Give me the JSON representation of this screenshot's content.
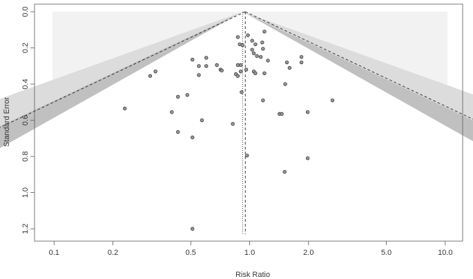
{
  "chart_data": {
    "type": "scatter",
    "title": "",
    "xlabel": "Risk Ratio",
    "ylabel": "Standard Error",
    "x_scale": "log",
    "xlim": [
      0.0876,
      11.5
    ],
    "ylim": [
      0,
      1.23
    ],
    "y_inverted": true,
    "x_ticks": [
      0.1,
      0.2,
      0.5,
      1.0,
      2.0,
      5.0,
      10.0
    ],
    "x_tick_labels": [
      "0.1",
      "0.2",
      "0.5",
      "1.0",
      "2.0",
      "5.0",
      "10.0"
    ],
    "y_ticks": [
      0,
      0.2,
      0.4,
      0.6,
      0.8,
      1.0,
      1.2
    ],
    "y_tick_labels": [
      "0.0",
      "0.2",
      "0.4",
      "0.6",
      "0.8",
      "1.0",
      "1.2"
    ],
    "pooled_estimate": 0.95,
    "null_value": 0.921,
    "contours": [
      {
        "significance": 0.1,
        "z": 1.645,
        "color": "#ffffff"
      },
      {
        "significance": 0.05,
        "z": 1.96,
        "color": "#c0c0c0"
      },
      {
        "significance": 0.01,
        "z": 2.576,
        "color": "#dcdcdc"
      },
      {
        "significance": "outside",
        "color": "#f2f2f2"
      }
    ],
    "points": [
      {
        "rr": 1.19,
        "se": 0.11
      },
      {
        "rr": 0.87,
        "se": 0.14
      },
      {
        "rr": 0.98,
        "se": 0.13
      },
      {
        "rr": 0.89,
        "se": 0.18
      },
      {
        "rr": 0.92,
        "se": 0.185
      },
      {
        "rr": 1.03,
        "se": 0.16
      },
      {
        "rr": 1.07,
        "se": 0.18
      },
      {
        "rr": 1.16,
        "se": 0.17
      },
      {
        "rr": 1.03,
        "se": 0.21
      },
      {
        "rr": 1.05,
        "se": 0.23
      },
      {
        "rr": 1.17,
        "se": 0.205
      },
      {
        "rr": 1.09,
        "se": 0.245
      },
      {
        "rr": 1.14,
        "se": 0.25
      },
      {
        "rr": 1.24,
        "se": 0.27
      },
      {
        "rr": 1.84,
        "se": 0.25
      },
      {
        "rr": 1.84,
        "se": 0.28
      },
      {
        "rr": 1.55,
        "se": 0.28
      },
      {
        "rr": 1.6,
        "se": 0.31
      },
      {
        "rr": 0.51,
        "se": 0.265
      },
      {
        "rr": 0.6,
        "se": 0.255
      },
      {
        "rr": 0.55,
        "se": 0.3
      },
      {
        "rr": 0.6,
        "se": 0.3
      },
      {
        "rr": 0.68,
        "se": 0.295
      },
      {
        "rr": 0.71,
        "se": 0.32
      },
      {
        "rr": 0.72,
        "se": 0.325
      },
      {
        "rr": 0.87,
        "se": 0.295
      },
      {
        "rr": 0.9,
        "se": 0.295
      },
      {
        "rr": 0.9,
        "se": 0.33
      },
      {
        "rr": 0.85,
        "se": 0.345
      },
      {
        "rr": 0.87,
        "se": 0.355
      },
      {
        "rr": 0.96,
        "se": 0.32
      },
      {
        "rr": 1.05,
        "se": 0.33
      },
      {
        "rr": 1.07,
        "se": 0.34
      },
      {
        "rr": 1.19,
        "se": 0.34
      },
      {
        "rr": 0.33,
        "se": 0.33
      },
      {
        "rr": 0.31,
        "se": 0.355
      },
      {
        "rr": 0.55,
        "se": 0.35
      },
      {
        "rr": 1.52,
        "se": 0.4
      },
      {
        "rr": 0.91,
        "se": 0.445
      },
      {
        "rr": 0.43,
        "se": 0.47
      },
      {
        "rr": 0.48,
        "se": 0.46
      },
      {
        "rr": 1.17,
        "se": 0.49
      },
      {
        "rr": 2.65,
        "se": 0.49
      },
      {
        "rr": 0.23,
        "se": 0.535
      },
      {
        "rr": 0.4,
        "se": 0.555
      },
      {
        "rr": 1.98,
        "se": 0.555
      },
      {
        "rr": 1.42,
        "se": 0.565
      },
      {
        "rr": 1.46,
        "se": 0.565
      },
      {
        "rr": 0.57,
        "se": 0.6
      },
      {
        "rr": 0.82,
        "se": 0.62
      },
      {
        "rr": 0.43,
        "se": 0.665
      },
      {
        "rr": 0.51,
        "se": 0.695
      },
      {
        "rr": 0.97,
        "se": 0.795
      },
      {
        "rr": 1.98,
        "se": 0.81
      },
      {
        "rr": 1.51,
        "se": 0.885
      },
      {
        "rr": 0.51,
        "se": 1.2
      }
    ]
  }
}
